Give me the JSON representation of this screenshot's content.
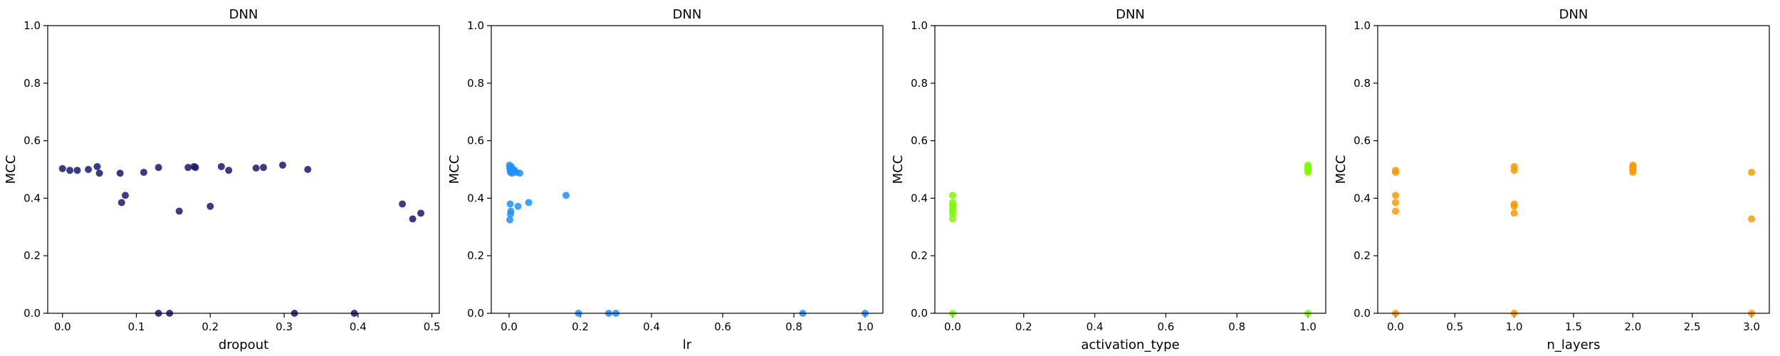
{
  "chart_data": [
    {
      "type": "scatter",
      "title": "DNN",
      "xlabel": "dropout",
      "ylabel": "MCC",
      "xlim": [
        -0.02,
        0.51
      ],
      "ylim": [
        0,
        1.0
      ],
      "xticks": [
        "0.0",
        "0.1",
        "0.2",
        "0.3",
        "0.4",
        "0.5"
      ],
      "xtick_values": [
        0.0,
        0.1,
        0.2,
        0.3,
        0.4,
        0.5
      ],
      "yticks": [
        "0.0",
        "0.2",
        "0.4",
        "0.6",
        "0.8",
        "1.0"
      ],
      "ytick_values": [
        0.0,
        0.2,
        0.4,
        0.6,
        0.8,
        1.0
      ],
      "color": "#191970",
      "x": [
        0.0,
        0.01,
        0.02,
        0.035,
        0.047,
        0.05,
        0.078,
        0.08,
        0.085,
        0.11,
        0.13,
        0.13,
        0.145,
        0.158,
        0.17,
        0.178,
        0.18,
        0.2,
        0.215,
        0.225,
        0.262,
        0.272,
        0.298,
        0.314,
        0.332,
        0.395,
        0.46,
        0.474,
        0.485
      ],
      "y": [
        0.503,
        0.497,
        0.497,
        0.5,
        0.51,
        0.487,
        0.487,
        0.385,
        0.41,
        0.49,
        0.507,
        0.0,
        0.0,
        0.355,
        0.507,
        0.51,
        0.507,
        0.372,
        0.51,
        0.497,
        0.505,
        0.507,
        0.515,
        0.0,
        0.5,
        0.0,
        0.38,
        0.328,
        0.348
      ]
    },
    {
      "type": "scatter",
      "title": "DNN",
      "xlabel": "lr",
      "ylabel": "MCC",
      "xlim": [
        -0.05,
        1.05
      ],
      "ylim": [
        0,
        1.0
      ],
      "xticks": [
        "0.0",
        "0.2",
        "0.4",
        "0.6",
        "0.8",
        "1.0"
      ],
      "xtick_values": [
        0.0,
        0.2,
        0.4,
        0.6,
        0.8,
        1.0
      ],
      "yticks": [
        "0.0",
        "0.2",
        "0.4",
        "0.6",
        "0.8",
        "1.0"
      ],
      "ytick_values": [
        0.0,
        0.2,
        0.4,
        0.6,
        0.8,
        1.0
      ],
      "color": "#1e90ff",
      "x": [
        0.001,
        0.002,
        0.003,
        0.004,
        0.005,
        0.006,
        0.008,
        0.01,
        0.012,
        0.015,
        0.02,
        0.03,
        0.003,
        0.004,
        0.005,
        0.002,
        0.025,
        0.055,
        0.16,
        0.195,
        0.28,
        0.3,
        0.825,
        1.0
      ],
      "y": [
        0.515,
        0.505,
        0.497,
        0.49,
        0.5,
        0.51,
        0.487,
        0.495,
        0.5,
        0.497,
        0.49,
        0.487,
        0.38,
        0.345,
        0.355,
        0.325,
        0.372,
        0.385,
        0.41,
        0.0,
        0.0,
        0.0,
        0.0,
        0.0
      ]
    },
    {
      "type": "scatter",
      "title": "DNN",
      "xlabel": "activation_type",
      "ylabel": "MCC",
      "xlim": [
        -0.05,
        1.05
      ],
      "ylim": [
        0,
        1.0
      ],
      "xticks": [
        "0.0",
        "0.2",
        "0.4",
        "0.6",
        "0.8",
        "1.0"
      ],
      "xtick_values": [
        0.0,
        0.2,
        0.4,
        0.6,
        0.8,
        1.0
      ],
      "yticks": [
        "0.0",
        "0.2",
        "0.4",
        "0.6",
        "0.8",
        "1.0"
      ],
      "ytick_values": [
        0.0,
        0.2,
        0.4,
        0.6,
        0.8,
        1.0
      ],
      "color": "#7cfc00",
      "x": [
        0,
        0,
        0,
        0,
        0,
        0,
        0,
        0,
        0,
        1,
        1,
        1,
        1,
        1,
        1,
        1,
        1
      ],
      "y": [
        0.41,
        0.385,
        0.375,
        0.372,
        0.36,
        0.355,
        0.345,
        0.328,
        0.0,
        0.515,
        0.51,
        0.507,
        0.503,
        0.5,
        0.497,
        0.49,
        0.0
      ]
    },
    {
      "type": "scatter",
      "title": "DNN",
      "xlabel": "n_layers",
      "ylabel": "MCC",
      "xlim": [
        -0.15,
        3.15
      ],
      "ylim": [
        0,
        1.0
      ],
      "xticks": [
        "0.0",
        "0.5",
        "1.0",
        "1.5",
        "2.0",
        "2.5",
        "3.0"
      ],
      "xtick_values": [
        0.0,
        0.5,
        1.0,
        1.5,
        2.0,
        2.5,
        3.0
      ],
      "yticks": [
        "0.0",
        "0.2",
        "0.4",
        "0.6",
        "0.8",
        "1.0"
      ],
      "ytick_values": [
        0.0,
        0.2,
        0.4,
        0.6,
        0.8,
        1.0
      ],
      "color": "#ff9900",
      "x": [
        0,
        0,
        0,
        0,
        0,
        0,
        1,
        1,
        1,
        1,
        1,
        1,
        2,
        2,
        2,
        2,
        2,
        2,
        3,
        3,
        3
      ],
      "y": [
        0.497,
        0.49,
        0.41,
        0.385,
        0.355,
        0.0,
        0.51,
        0.497,
        0.38,
        0.372,
        0.348,
        0.0,
        0.515,
        0.51,
        0.507,
        0.5,
        0.497,
        0.49,
        0.49,
        0.328,
        0.0
      ]
    }
  ]
}
